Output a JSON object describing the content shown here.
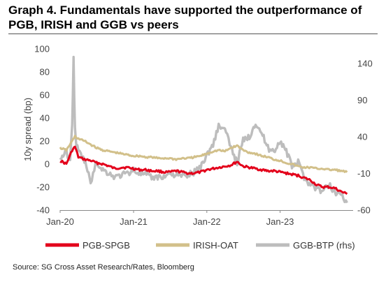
{
  "title_lines": [
    "Graph 4. Fundamentals have supported the outperformance of",
    "PGB, IRISH and GGB vs peers"
  ],
  "source": "Source: SG Cross Asset Research/Rates, Bloomberg",
  "chart_data": {
    "type": "line",
    "title": "Graph 4. Fundamentals have supported the outperformance of PGB, IRISH and GGB vs peers",
    "ylabel": "10y spread (bp)",
    "ylim": [
      -40,
      100
    ],
    "yticks": [
      -40,
      -20,
      0,
      20,
      40,
      60,
      80,
      100
    ],
    "y2lim": [
      -60,
      160
    ],
    "y2ticks": [
      -60,
      -10,
      40,
      90,
      140
    ],
    "xlim": [
      "2020-01-01",
      "2023-12-31"
    ],
    "xticks": [
      "Jan-20",
      "Jan-21",
      "Jan-22",
      "Jan-23"
    ],
    "grid": false,
    "legend_position": "bottom",
    "series": [
      {
        "name": "PGB-SPGB",
        "axis": "left",
        "color": "#e3001b",
        "x": [
          "2020-01-01",
          "2020-02-01",
          "2020-03-01",
          "2020-03-15",
          "2020-04-01",
          "2020-05-01",
          "2020-06-01",
          "2020-07-01",
          "2020-08-01",
          "2020-09-01",
          "2020-10-01",
          "2020-11-01",
          "2020-12-01",
          "2021-01-01",
          "2021-02-01",
          "2021-03-01",
          "2021-04-01",
          "2021-05-01",
          "2021-06-01",
          "2021-07-01",
          "2021-08-01",
          "2021-09-01",
          "2021-10-01",
          "2021-11-01",
          "2021-12-01",
          "2022-01-01",
          "2022-02-01",
          "2022-03-01",
          "2022-04-01",
          "2022-05-01",
          "2022-06-01",
          "2022-07-01",
          "2022-08-01",
          "2022-09-01",
          "2022-10-01",
          "2022-11-01",
          "2022-12-01",
          "2023-01-01",
          "2023-02-01",
          "2023-03-01",
          "2023-04-01",
          "2023-05-01",
          "2023-06-01",
          "2023-07-01",
          "2023-08-01",
          "2023-09-01",
          "2023-10-01",
          "2023-11-01",
          "2023-12-01"
        ],
        "y": [
          3,
          0,
          12,
          15,
          6,
          4,
          3,
          1,
          0,
          -2,
          -4,
          -3,
          -3,
          -4,
          -5,
          -5,
          -6,
          -6,
          -7,
          -7,
          -6,
          -7,
          -8,
          -8,
          -7,
          -5,
          -4,
          -3,
          -2,
          -1,
          2,
          -2,
          -3,
          -4,
          -5,
          -6,
          -6,
          -7,
          -8,
          -9,
          -10,
          -12,
          -14,
          -18,
          -20,
          -20,
          -21,
          -24,
          -26
        ]
      },
      {
        "name": "IRISH-OAT",
        "axis": "left",
        "color": "#d2c08a",
        "x": [
          "2020-01-01",
          "2020-02-01",
          "2020-03-01",
          "2020-03-15",
          "2020-04-01",
          "2020-05-01",
          "2020-06-01",
          "2020-07-01",
          "2020-08-01",
          "2020-09-01",
          "2020-10-01",
          "2020-11-01",
          "2020-12-01",
          "2021-01-01",
          "2021-02-01",
          "2021-03-01",
          "2021-04-01",
          "2021-05-01",
          "2021-06-01",
          "2021-07-01",
          "2021-08-01",
          "2021-09-01",
          "2021-10-01",
          "2021-11-01",
          "2021-12-01",
          "2022-01-01",
          "2022-02-01",
          "2022-03-01",
          "2022-04-01",
          "2022-05-01",
          "2022-06-01",
          "2022-07-01",
          "2022-08-01",
          "2022-09-01",
          "2022-10-01",
          "2022-11-01",
          "2022-12-01",
          "2023-01-01",
          "2023-02-01",
          "2023-03-01",
          "2023-04-01",
          "2023-05-01",
          "2023-06-01",
          "2023-07-01",
          "2023-08-01",
          "2023-09-01",
          "2023-10-01",
          "2023-11-01",
          "2023-12-01"
        ],
        "y": [
          14,
          12,
          20,
          24,
          22,
          20,
          17,
          14,
          12,
          11,
          10,
          9,
          8,
          7,
          7,
          6,
          6,
          5,
          5,
          5,
          4,
          5,
          5,
          6,
          7,
          9,
          11,
          12,
          11,
          14,
          16,
          12,
          10,
          9,
          7,
          6,
          4,
          3,
          1,
          0,
          -2,
          -3,
          -3,
          -4,
          -4,
          -5,
          -5,
          -6,
          -7
        ]
      },
      {
        "name": "GGB-BTP (rhs)",
        "axis": "right",
        "color": "#bdbdbd",
        "x": [
          "2020-01-01",
          "2020-02-01",
          "2020-02-20",
          "2020-03-01",
          "2020-03-08",
          "2020-03-15",
          "2020-03-22",
          "2020-04-01",
          "2020-05-01",
          "2020-06-01",
          "2020-07-01",
          "2020-08-01",
          "2020-09-01",
          "2020-10-01",
          "2020-11-01",
          "2020-12-01",
          "2021-01-01",
          "2021-02-01",
          "2021-03-01",
          "2021-04-01",
          "2021-05-01",
          "2021-06-01",
          "2021-07-01",
          "2021-08-01",
          "2021-09-01",
          "2021-10-01",
          "2021-11-01",
          "2021-12-01",
          "2022-01-01",
          "2022-02-01",
          "2022-03-01",
          "2022-04-01",
          "2022-05-01",
          "2022-06-01",
          "2022-07-01",
          "2022-08-01",
          "2022-09-01",
          "2022-10-01",
          "2022-11-01",
          "2022-12-01",
          "2023-01-01",
          "2023-02-01",
          "2023-03-01",
          "2023-04-01",
          "2023-05-01",
          "2023-06-01",
          "2023-07-01",
          "2023-08-01",
          "2023-09-01",
          "2023-10-01",
          "2023-11-01",
          "2023-12-01"
        ],
        "y": [
          10,
          20,
          5,
          60,
          145,
          50,
          30,
          20,
          8,
          -22,
          5,
          -5,
          -10,
          -15,
          -12,
          -10,
          -5,
          -10,
          -12,
          -16,
          -15,
          -14,
          -10,
          -12,
          -14,
          -12,
          -8,
          0,
          15,
          30,
          55,
          50,
          25,
          5,
          35,
          40,
          60,
          45,
          25,
          20,
          35,
          20,
          0,
          5,
          -15,
          -25,
          -30,
          -35,
          -25,
          -35,
          -38,
          -50
        ]
      }
    ]
  }
}
